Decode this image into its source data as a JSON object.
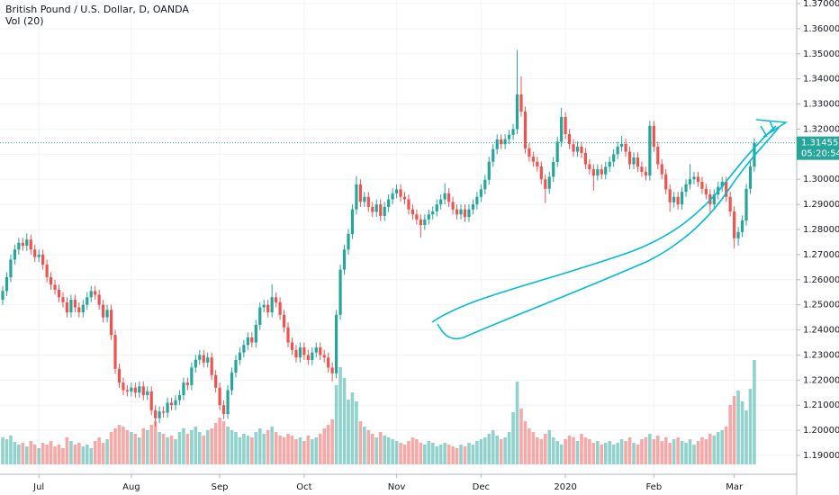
{
  "chart_data": {
    "type": "candlestick",
    "title": "British Pound / U.S. Dollar, D, OANDA",
    "subtitle": "Vol (20)",
    "up_color": "#26a69a",
    "down_color": "#ef5350",
    "ylim": [
      1.19,
      1.37
    ],
    "yticks": [
      {
        "value": 1.19,
        "label": "1.19000"
      },
      {
        "value": 1.2,
        "label": "1.20000"
      },
      {
        "value": 1.21,
        "label": "1.21000"
      },
      {
        "value": 1.22,
        "label": "1.22000"
      },
      {
        "value": 1.23,
        "label": "1.23000"
      },
      {
        "value": 1.24,
        "label": "1.24000"
      },
      {
        "value": 1.25,
        "label": "1.25000"
      },
      {
        "value": 1.26,
        "label": "1.26000"
      },
      {
        "value": 1.27,
        "label": "1.27000"
      },
      {
        "value": 1.28,
        "label": "1.28000"
      },
      {
        "value": 1.29,
        "label": "1.29000"
      },
      {
        "value": 1.3,
        "label": "1.30000"
      },
      {
        "value": 1.31,
        "label": "1.31000"
      },
      {
        "value": 1.32,
        "label": "1.32000"
      },
      {
        "value": 1.33,
        "label": "1.33000"
      },
      {
        "value": 1.34,
        "label": "1.34000"
      },
      {
        "value": 1.35,
        "label": "1.35000"
      },
      {
        "value": 1.36,
        "label": "1.36000"
      },
      {
        "value": 1.37,
        "label": "1.37000"
      }
    ],
    "xticks": [
      {
        "value": 9,
        "label": "Jul"
      },
      {
        "value": 32,
        "label": "Aug"
      },
      {
        "value": 54,
        "label": "Sep"
      },
      {
        "value": 75,
        "label": "Oct"
      },
      {
        "value": 98,
        "label": "Nov"
      },
      {
        "value": 119,
        "label": "Dec"
      },
      {
        "value": 140,
        "label": "2020"
      },
      {
        "value": 162,
        "label": "Feb"
      },
      {
        "value": 182,
        "label": "Mar"
      }
    ],
    "last_price": 1.31455,
    "countdown": "05:20:54",
    "grid": true,
    "candles": [
      [
        1.252,
        1.2575,
        1.25,
        1.2555
      ],
      [
        1.2555,
        1.263,
        1.2535,
        1.261
      ],
      [
        1.261,
        1.27,
        1.259,
        1.268
      ],
      [
        1.268,
        1.274,
        1.266,
        1.272
      ],
      [
        1.272,
        1.2767,
        1.27,
        1.2747
      ],
      [
        1.2747,
        1.2767,
        1.2715,
        1.2735
      ],
      [
        1.2735,
        1.2785,
        1.2715,
        1.276
      ],
      [
        1.276,
        1.278,
        1.27,
        1.272
      ],
      [
        1.272,
        1.274,
        1.267,
        1.269
      ],
      [
        1.269,
        1.272,
        1.267,
        1.27
      ],
      [
        1.27,
        1.272,
        1.264,
        1.266
      ],
      [
        1.266,
        1.268,
        1.259,
        1.261
      ],
      [
        1.261,
        1.263,
        1.256,
        1.258
      ],
      [
        1.258,
        1.26,
        1.254,
        1.256
      ],
      [
        1.256,
        1.258,
        1.251,
        1.253
      ],
      [
        1.253,
        1.255,
        1.249,
        1.251
      ],
      [
        1.251,
        1.253,
        1.245,
        1.247
      ],
      [
        1.247,
        1.254,
        1.245,
        1.252
      ],
      [
        1.252,
        1.254,
        1.247,
        1.249
      ],
      [
        1.249,
        1.251,
        1.245,
        1.247
      ],
      [
        1.247,
        1.252,
        1.245,
        1.25
      ],
      [
        1.25,
        1.255,
        1.248,
        1.253
      ],
      [
        1.253,
        1.2575,
        1.251,
        1.2555
      ],
      [
        1.2555,
        1.2575,
        1.252,
        1.254
      ],
      [
        1.254,
        1.256,
        1.248,
        1.25
      ],
      [
        1.25,
        1.252,
        1.243,
        1.245
      ],
      [
        1.245,
        1.25,
        1.243,
        1.248
      ],
      [
        1.248,
        1.25,
        1.236,
        1.238
      ],
      [
        1.238,
        1.24,
        1.2225,
        1.2245
      ],
      [
        1.2245,
        1.2265,
        1.217,
        1.219
      ],
      [
        1.219,
        1.221,
        1.214,
        1.216
      ],
      [
        1.216,
        1.218,
        1.2135,
        1.2155
      ],
      [
        1.2155,
        1.219,
        1.2135,
        1.217
      ],
      [
        1.217,
        1.219,
        1.213,
        1.215
      ],
      [
        1.215,
        1.2195,
        1.213,
        1.2175
      ],
      [
        1.2175,
        1.2195,
        1.212,
        1.214
      ],
      [
        1.214,
        1.2175,
        1.212,
        1.2155
      ],
      [
        1.2155,
        1.2175,
        1.206,
        1.208
      ],
      [
        1.208,
        1.21,
        1.2015,
        1.2048
      ],
      [
        1.2048,
        1.2095,
        1.2028,
        1.2075
      ],
      [
        1.2075,
        1.2095,
        1.205,
        1.207
      ],
      [
        1.207,
        1.213,
        1.205,
        1.211
      ],
      [
        1.211,
        1.213,
        1.208,
        1.21
      ],
      [
        1.21,
        1.214,
        1.208,
        1.212
      ],
      [
        1.212,
        1.216,
        1.21,
        1.214
      ],
      [
        1.214,
        1.221,
        1.212,
        1.219
      ],
      [
        1.219,
        1.221,
        1.216,
        1.218
      ],
      [
        1.218,
        1.227,
        1.216,
        1.225
      ],
      [
        1.225,
        1.2301,
        1.223,
        1.2281
      ],
      [
        1.2281,
        1.232,
        1.2261,
        1.23
      ],
      [
        1.23,
        1.232,
        1.225,
        1.227
      ],
      [
        1.227,
        1.231,
        1.225,
        1.229
      ],
      [
        1.229,
        1.231,
        1.22,
        1.222
      ],
      [
        1.222,
        1.224,
        1.215,
        1.217
      ],
      [
        1.217,
        1.219,
        1.208,
        1.21
      ],
      [
        1.21,
        1.212,
        1.2045,
        1.2065
      ],
      [
        1.2065,
        1.218,
        1.2045,
        1.216
      ],
      [
        1.216,
        1.225,
        1.214,
        1.223
      ],
      [
        1.223,
        1.23,
        1.221,
        1.228
      ],
      [
        1.228,
        1.233,
        1.226,
        1.231
      ],
      [
        1.231,
        1.236,
        1.229,
        1.234
      ],
      [
        1.234,
        1.239,
        1.232,
        1.237
      ],
      [
        1.237,
        1.239,
        1.233,
        1.235
      ],
      [
        1.235,
        1.244,
        1.233,
        1.242
      ],
      [
        1.242,
        1.251,
        1.24,
        1.249
      ],
      [
        1.249,
        1.252,
        1.247,
        1.25
      ],
      [
        1.25,
        1.252,
        1.245,
        1.247
      ],
      [
        1.247,
        1.2582,
        1.245,
        1.253
      ],
      [
        1.253,
        1.255,
        1.249,
        1.251
      ],
      [
        1.251,
        1.253,
        1.244,
        1.246
      ],
      [
        1.246,
        1.248,
        1.239,
        1.241
      ],
      [
        1.241,
        1.243,
        1.233,
        1.235
      ],
      [
        1.235,
        1.237,
        1.23,
        1.232
      ],
      [
        1.232,
        1.234,
        1.227,
        1.229
      ],
      [
        1.229,
        1.235,
        1.227,
        1.233
      ],
      [
        1.233,
        1.235,
        1.228,
        1.23
      ],
      [
        1.23,
        1.232,
        1.226,
        1.228
      ],
      [
        1.228,
        1.233,
        1.226,
        1.231
      ],
      [
        1.231,
        1.235,
        1.229,
        1.233
      ],
      [
        1.233,
        1.235,
        1.228,
        1.23
      ],
      [
        1.23,
        1.232,
        1.227,
        1.229
      ],
      [
        1.229,
        1.231,
        1.223,
        1.225
      ],
      [
        1.225,
        1.227,
        1.2195,
        1.2227
      ],
      [
        1.2227,
        1.248,
        1.2207,
        1.246
      ],
      [
        1.246,
        1.266,
        1.244,
        1.264
      ],
      [
        1.264,
        1.274,
        1.262,
        1.272
      ],
      [
        1.272,
        1.2802,
        1.27,
        1.2782
      ],
      [
        1.2782,
        1.29,
        1.2762,
        1.288
      ],
      [
        1.288,
        1.3013,
        1.286,
        1.298
      ],
      [
        1.298,
        1.3,
        1.289,
        1.291
      ],
      [
        1.291,
        1.295,
        1.289,
        1.293
      ],
      [
        1.293,
        1.295,
        1.287,
        1.289
      ],
      [
        1.289,
        1.291,
        1.285,
        1.287
      ],
      [
        1.287,
        1.292,
        1.285,
        1.29
      ],
      [
        1.29,
        1.292,
        1.2834,
        1.2854
      ],
      [
        1.2854,
        1.291,
        1.2834,
        1.289
      ],
      [
        1.289,
        1.294,
        1.287,
        1.292
      ],
      [
        1.292,
        1.2964,
        1.29,
        1.2944
      ],
      [
        1.2944,
        1.298,
        1.2924,
        1.296
      ],
      [
        1.296,
        1.298,
        1.291,
        1.293
      ],
      [
        1.293,
        1.295,
        1.29,
        1.292
      ],
      [
        1.292,
        1.294,
        1.286,
        1.288
      ],
      [
        1.288,
        1.29,
        1.284,
        1.286
      ],
      [
        1.286,
        1.288,
        1.282,
        1.284
      ],
      [
        1.284,
        1.286,
        1.2768,
        1.2818
      ],
      [
        1.2818,
        1.286,
        1.2798,
        1.284
      ],
      [
        1.284,
        1.288,
        1.282,
        1.286
      ],
      [
        1.286,
        1.2892,
        1.284,
        1.2872
      ],
      [
        1.2872,
        1.292,
        1.2852,
        1.29
      ],
      [
        1.29,
        1.294,
        1.288,
        1.292
      ],
      [
        1.292,
        1.2985,
        1.29,
        1.2944
      ],
      [
        1.2944,
        1.2964,
        1.289,
        1.291
      ],
      [
        1.291,
        1.293,
        1.286,
        1.288
      ],
      [
        1.288,
        1.29,
        1.284,
        1.286
      ],
      [
        1.286,
        1.29,
        1.284,
        1.288
      ],
      [
        1.288,
        1.29,
        1.283,
        1.285
      ],
      [
        1.285,
        1.29,
        1.283,
        1.288
      ],
      [
        1.288,
        1.292,
        1.286,
        1.29
      ],
      [
        1.29,
        1.295,
        1.288,
        1.293
      ],
      [
        1.293,
        1.298,
        1.291,
        1.296
      ],
      [
        1.296,
        1.3018,
        1.294,
        1.2998
      ],
      [
        1.2998,
        1.309,
        1.2978,
        1.307
      ],
      [
        1.307,
        1.314,
        1.305,
        1.312
      ],
      [
        1.312,
        1.3179,
        1.31,
        1.3159
      ],
      [
        1.3159,
        1.3179,
        1.312,
        1.314
      ],
      [
        1.314,
        1.318,
        1.312,
        1.316
      ],
      [
        1.316,
        1.3197,
        1.314,
        1.3177
      ],
      [
        1.3177,
        1.322,
        1.3157,
        1.32
      ],
      [
        1.32,
        1.3515,
        1.318,
        1.3338
      ],
      [
        1.3338,
        1.341,
        1.325,
        1.327
      ],
      [
        1.327,
        1.329,
        1.3103,
        1.3123
      ],
      [
        1.3123,
        1.3143,
        1.307,
        1.309
      ],
      [
        1.309,
        1.311,
        1.305,
        1.307
      ],
      [
        1.307,
        1.309,
        1.3031,
        1.3051
      ],
      [
        1.3051,
        1.3071,
        1.298,
        1.3
      ],
      [
        1.3,
        1.302,
        1.2905,
        1.2962
      ],
      [
        1.2962,
        1.303,
        1.2942,
        1.301
      ],
      [
        1.301,
        1.3089,
        1.299,
        1.3069
      ],
      [
        1.3069,
        1.317,
        1.3049,
        1.315
      ],
      [
        1.315,
        1.3285,
        1.313,
        1.3248
      ],
      [
        1.3248,
        1.3268,
        1.316,
        1.318
      ],
      [
        1.318,
        1.32,
        1.312,
        1.314
      ],
      [
        1.314,
        1.316,
        1.309,
        1.311
      ],
      [
        1.311,
        1.315,
        1.309,
        1.313
      ],
      [
        1.313,
        1.315,
        1.3085,
        1.3105
      ],
      [
        1.3105,
        1.3125,
        1.304,
        1.306
      ],
      [
        1.306,
        1.308,
        1.302,
        1.304
      ],
      [
        1.304,
        1.306,
        1.2955,
        1.3015
      ],
      [
        1.3015,
        1.306,
        1.2995,
        1.304
      ],
      [
        1.304,
        1.306,
        1.3,
        1.302
      ],
      [
        1.302,
        1.307,
        1.3,
        1.305
      ],
      [
        1.305,
        1.309,
        1.303,
        1.307
      ],
      [
        1.307,
        1.312,
        1.305,
        1.31
      ],
      [
        1.31,
        1.315,
        1.308,
        1.313
      ],
      [
        1.313,
        1.3173,
        1.311,
        1.3141
      ],
      [
        1.3141,
        1.3161,
        1.309,
        1.311
      ],
      [
        1.311,
        1.313,
        1.304,
        1.306
      ],
      [
        1.306,
        1.3107,
        1.304,
        1.3087
      ],
      [
        1.3087,
        1.3107,
        1.303,
        1.305
      ],
      [
        1.305,
        1.307,
        1.301,
        1.303
      ],
      [
        1.303,
        1.305,
        1.2995,
        1.3015
      ],
      [
        1.3015,
        1.3233,
        1.2995,
        1.3213
      ],
      [
        1.3213,
        1.3233,
        1.311,
        1.313
      ],
      [
        1.313,
        1.315,
        1.304,
        1.306
      ],
      [
        1.306,
        1.308,
        1.3,
        1.302
      ],
      [
        1.302,
        1.304,
        1.294,
        1.296
      ],
      [
        1.296,
        1.298,
        1.287,
        1.2908
      ],
      [
        1.2908,
        1.295,
        1.2888,
        1.293
      ],
      [
        1.293,
        1.295,
        1.288,
        1.29
      ],
      [
        1.29,
        1.297,
        1.288,
        1.295
      ],
      [
        1.295,
        1.3,
        1.293,
        1.298
      ],
      [
        1.298,
        1.306,
        1.296,
        1.3
      ],
      [
        1.3,
        1.303,
        1.298,
        1.301
      ],
      [
        1.301,
        1.303,
        1.297,
        1.299
      ],
      [
        1.299,
        1.301,
        1.2942,
        1.2962
      ],
      [
        1.2962,
        1.2982,
        1.292,
        1.294
      ],
      [
        1.294,
        1.296,
        1.287,
        1.29
      ],
      [
        1.29,
        1.296,
        1.288,
        1.294
      ],
      [
        1.294,
        1.299,
        1.292,
        1.297
      ],
      [
        1.297,
        1.301,
        1.295,
        1.299
      ],
      [
        1.299,
        1.301,
        1.291,
        1.293
      ],
      [
        1.293,
        1.295,
        1.2852,
        1.2872
      ],
      [
        1.2872,
        1.2892,
        1.2725,
        1.2765
      ],
      [
        1.2765,
        1.281,
        1.2735,
        1.279
      ],
      [
        1.279,
        1.2856,
        1.277,
        1.2836
      ],
      [
        1.2836,
        1.2982,
        1.2816,
        1.2962
      ],
      [
        1.2962,
        1.3071,
        1.2942,
        1.3051
      ],
      [
        1.3051,
        1.3165,
        1.3031,
        1.31455
      ]
    ],
    "volume": [
      30,
      28,
      32,
      25,
      22,
      24,
      20,
      26,
      22,
      18,
      24,
      22,
      26,
      20,
      22,
      18,
      30,
      26,
      22,
      24,
      20,
      22,
      18,
      26,
      30,
      24,
      28,
      36,
      40,
      44,
      42,
      38,
      36,
      34,
      30,
      40,
      38,
      44,
      48,
      36,
      34,
      30,
      32,
      28,
      36,
      40,
      34,
      38,
      42,
      36,
      32,
      38,
      40,
      46,
      52,
      48,
      42,
      38,
      36,
      30,
      34,
      32,
      30,
      36,
      40,
      34,
      38,
      42,
      36,
      32,
      30,
      34,
      32,
      28,
      30,
      26,
      32,
      28,
      30,
      34,
      40,
      44,
      50,
      88,
      108,
      96,
      72,
      80,
      70,
      48,
      42,
      38,
      34,
      30,
      36,
      32,
      30,
      28,
      26,
      24,
      22,
      26,
      30,
      28,
      24,
      22,
      26,
      24,
      20,
      22,
      24,
      22,
      20,
      18,
      22,
      20,
      24,
      22,
      26,
      28,
      30,
      34,
      38,
      32,
      28,
      30,
      36,
      58,
      92,
      62,
      48,
      40,
      36,
      30,
      28,
      34,
      38,
      30,
      26,
      22,
      28,
      32,
      30,
      26,
      34,
      30,
      28,
      24,
      26,
      22,
      24,
      26,
      22,
      24,
      28,
      26,
      30,
      24,
      22,
      28,
      30,
      34,
      28,
      32,
      26,
      30,
      24,
      28,
      30,
      26,
      24,
      28,
      22,
      26,
      30,
      28,
      34,
      32,
      36,
      38,
      42,
      66,
      76,
      82,
      70,
      60,
      84,
      116
    ]
  }
}
